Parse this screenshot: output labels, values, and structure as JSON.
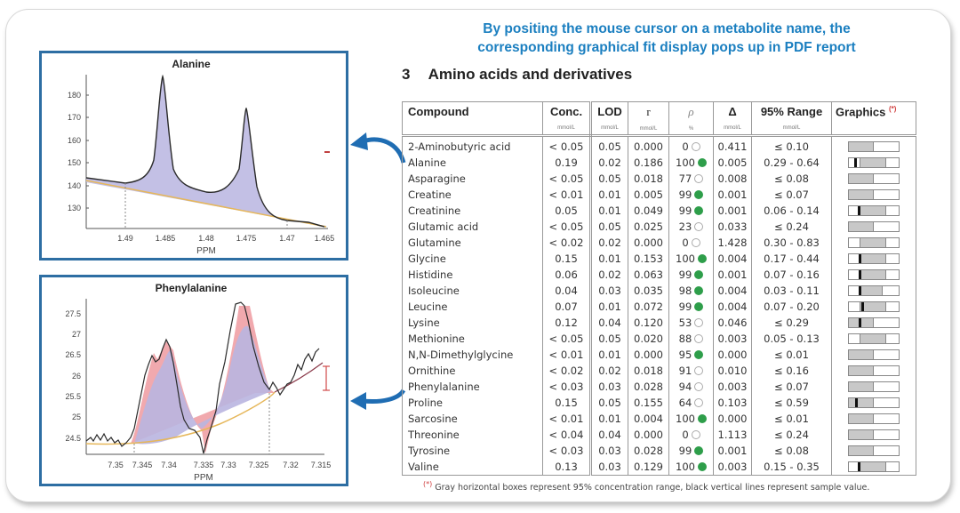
{
  "headline": {
    "line1": "By positing the mouse cursor on a metabolite name, the",
    "line2": "corresponding graphical fit display pops up in PDF report"
  },
  "section": {
    "number": "3",
    "title": "Amino acids and derivatives"
  },
  "table": {
    "columns": [
      {
        "label": "Compound",
        "unit": ""
      },
      {
        "label": "Conc.",
        "unit": "mmol/L"
      },
      {
        "label": "LOD",
        "unit": "mmol/L"
      },
      {
        "label": "r",
        "unit": "mmol/L"
      },
      {
        "label": "ρ",
        "unit": "%"
      },
      {
        "label": "Δ",
        "unit": "mmol/L"
      },
      {
        "label": "95% Range",
        "unit": "mmol/L"
      },
      {
        "label": "Graphics",
        "unit": "",
        "note": "(*)"
      }
    ],
    "rows": [
      {
        "compound": "2-Aminobutyric acid",
        "conc": "< 0.05",
        "lod": "0.05",
        "r": "0.000",
        "rho": "0",
        "rho_ok": false,
        "delta": "0.411",
        "range": "≤ 0.10",
        "bar": {
          "lo": 0,
          "hi": 50,
          "marker": null
        }
      },
      {
        "compound": "Alanine",
        "conc": "0.19",
        "lod": "0.02",
        "r": "0.186",
        "rho": "100",
        "rho_ok": true,
        "delta": "0.005",
        "range": "0.29 - 0.64",
        "bar": {
          "lo": 22,
          "hi": 75,
          "marker": 10
        }
      },
      {
        "compound": "Asparagine",
        "conc": "< 0.05",
        "lod": "0.05",
        "r": "0.018",
        "rho": "77",
        "rho_ok": false,
        "delta": "0.008",
        "range": "≤ 0.08",
        "bar": {
          "lo": 0,
          "hi": 50,
          "marker": null
        }
      },
      {
        "compound": "Creatine",
        "conc": "< 0.01",
        "lod": "0.01",
        "r": "0.005",
        "rho": "99",
        "rho_ok": true,
        "delta": "0.001",
        "range": "≤ 0.07",
        "bar": {
          "lo": 0,
          "hi": 50,
          "marker": null
        }
      },
      {
        "compound": "Creatinine",
        "conc": "0.05",
        "lod": "0.01",
        "r": "0.049",
        "rho": "99",
        "rho_ok": true,
        "delta": "0.001",
        "range": "0.06 - 0.14",
        "bar": {
          "lo": 22,
          "hi": 75,
          "marker": 18
        }
      },
      {
        "compound": "Glutamic acid",
        "conc": "< 0.05",
        "lod": "0.05",
        "r": "0.025",
        "rho": "23",
        "rho_ok": false,
        "delta": "0.033",
        "range": "≤ 0.24",
        "bar": {
          "lo": 0,
          "hi": 50,
          "marker": null
        }
      },
      {
        "compound": "Glutamine",
        "conc": "< 0.02",
        "lod": "0.02",
        "r": "0.000",
        "rho": "0",
        "rho_ok": false,
        "delta": "1.428",
        "range": "0.30 - 0.83",
        "bar": {
          "lo": 22,
          "hi": 75,
          "marker": null
        }
      },
      {
        "compound": "Glycine",
        "conc": "0.15",
        "lod": "0.01",
        "r": "0.153",
        "rho": "100",
        "rho_ok": true,
        "delta": "0.004",
        "range": "0.17 - 0.44",
        "bar": {
          "lo": 22,
          "hi": 75,
          "marker": 20
        }
      },
      {
        "compound": "Histidine",
        "conc": "0.06",
        "lod": "0.02",
        "r": "0.063",
        "rho": "99",
        "rho_ok": true,
        "delta": "0.001",
        "range": "0.07 - 0.16",
        "bar": {
          "lo": 22,
          "hi": 75,
          "marker": 20
        }
      },
      {
        "compound": "Isoleucine",
        "conc": "0.04",
        "lod": "0.03",
        "r": "0.035",
        "rho": "98",
        "rho_ok": true,
        "delta": "0.004",
        "range": "0.03 - 0.11",
        "bar": {
          "lo": 22,
          "hi": 68,
          "marker": 20
        }
      },
      {
        "compound": "Leucine",
        "conc": "0.07",
        "lod": "0.01",
        "r": "0.072",
        "rho": "99",
        "rho_ok": true,
        "delta": "0.004",
        "range": "0.07 - 0.20",
        "bar": {
          "lo": 22,
          "hi": 75,
          "marker": 25
        }
      },
      {
        "compound": "Lysine",
        "conc": "0.12",
        "lod": "0.04",
        "r": "0.120",
        "rho": "53",
        "rho_ok": false,
        "delta": "0.046",
        "range": "≤ 0.29",
        "bar": {
          "lo": 0,
          "hi": 50,
          "marker": 20
        }
      },
      {
        "compound": "Methionine",
        "conc": "< 0.05",
        "lod": "0.05",
        "r": "0.020",
        "rho": "88",
        "rho_ok": false,
        "delta": "0.003",
        "range": "0.05 - 0.13",
        "bar": {
          "lo": 22,
          "hi": 75,
          "marker": null
        }
      },
      {
        "compound": "N,N-Dimethylglycine",
        "conc": "< 0.01",
        "lod": "0.01",
        "r": "0.000",
        "rho": "95",
        "rho_ok": true,
        "delta": "0.000",
        "range": "≤ 0.01",
        "bar": {
          "lo": 0,
          "hi": 50,
          "marker": null
        }
      },
      {
        "compound": "Ornithine",
        "conc": "< 0.02",
        "lod": "0.02",
        "r": "0.018",
        "rho": "91",
        "rho_ok": false,
        "delta": "0.010",
        "range": "≤ 0.16",
        "bar": {
          "lo": 0,
          "hi": 50,
          "marker": null
        }
      },
      {
        "compound": "Phenylalanine",
        "conc": "< 0.03",
        "lod": "0.03",
        "r": "0.028",
        "rho": "94",
        "rho_ok": false,
        "delta": "0.003",
        "range": "≤ 0.07",
        "bar": {
          "lo": 0,
          "hi": 50,
          "marker": null
        }
      },
      {
        "compound": "Proline",
        "conc": "0.15",
        "lod": "0.05",
        "r": "0.155",
        "rho": "64",
        "rho_ok": false,
        "delta": "0.103",
        "range": "≤ 0.59",
        "bar": {
          "lo": 0,
          "hi": 50,
          "marker": 12
        }
      },
      {
        "compound": "Sarcosine",
        "conc": "< 0.01",
        "lod": "0.01",
        "r": "0.004",
        "rho": "100",
        "rho_ok": true,
        "delta": "0.000",
        "range": "≤ 0.01",
        "bar": {
          "lo": 0,
          "hi": 50,
          "marker": null
        }
      },
      {
        "compound": "Threonine",
        "conc": "< 0.04",
        "lod": "0.04",
        "r": "0.000",
        "rho": "0",
        "rho_ok": false,
        "delta": "1.113",
        "range": "≤ 0.24",
        "bar": {
          "lo": 0,
          "hi": 50,
          "marker": null
        }
      },
      {
        "compound": "Tyrosine",
        "conc": "< 0.03",
        "lod": "0.03",
        "r": "0.028",
        "rho": "99",
        "rho_ok": true,
        "delta": "0.001",
        "range": "≤ 0.08",
        "bar": {
          "lo": 0,
          "hi": 50,
          "marker": null
        }
      },
      {
        "compound": "Valine",
        "conc": "0.13",
        "lod": "0.03",
        "r": "0.129",
        "rho": "100",
        "rho_ok": true,
        "delta": "0.003",
        "range": "0.15 - 0.35",
        "bar": {
          "lo": 22,
          "hi": 75,
          "marker": 18
        }
      }
    ]
  },
  "footnote": {
    "star": "(*)",
    "text": "Gray horizontal boxes represent 95% concentration range, black vertical lines represent sample value."
  },
  "plots": {
    "alanine": {
      "title": "Alanine",
      "xlabel": "PPM",
      "xticks": [
        "1.49",
        "1.485",
        "1.48",
        "1.475",
        "1.47",
        "1.465"
      ],
      "yticks": [
        "180",
        "170",
        "160",
        "150",
        "140",
        "130"
      ]
    },
    "phenylalanine": {
      "title": "Phenylalanine",
      "xlabel": "PPM",
      "xticks": [
        "7.35",
        "7.345",
        "7.34",
        "7.335",
        "7.33",
        "7.325",
        "7.32",
        "7.315"
      ],
      "yticks": [
        "27.5",
        "27",
        "26.5",
        "26",
        "25.5",
        "25",
        "24.5"
      ]
    }
  },
  "colors": {
    "headline": "#1b7fc0",
    "panel_border": "#2d6ea3",
    "fit_fill": "#b9b5e0",
    "residual_fill": "#f1a9ae",
    "baseline": "#e6b75a",
    "rho_ok": "#2e9e4a"
  }
}
